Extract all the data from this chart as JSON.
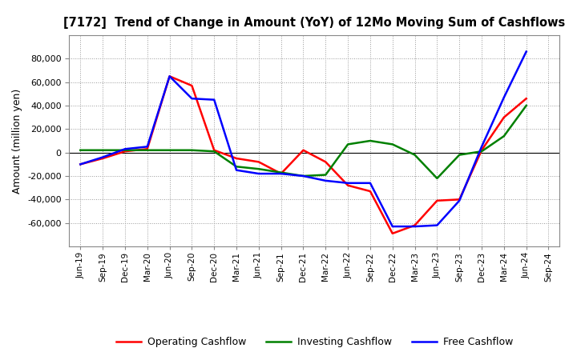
{
  "title": "[7172]  Trend of Change in Amount (YoY) of 12Mo Moving Sum of Cashflows",
  "ylabel": "Amount (million yen)",
  "x_labels": [
    "Jun-19",
    "Sep-19",
    "Dec-19",
    "Mar-20",
    "Jun-20",
    "Sep-20",
    "Dec-20",
    "Mar-21",
    "Jun-21",
    "Sep-21",
    "Dec-21",
    "Mar-22",
    "Jun-22",
    "Sep-22",
    "Dec-22",
    "Mar-23",
    "Jun-23",
    "Sep-23",
    "Dec-23",
    "Mar-24",
    "Jun-24",
    "Sep-24"
  ],
  "operating_cashflow": [
    -10000,
    -5000,
    1000,
    3000,
    65000,
    57000,
    2000,
    -5000,
    -8000,
    -18000,
    2000,
    -8000,
    -28000,
    -33000,
    -69000,
    -62000,
    -41000,
    -40000,
    2000,
    30000,
    46000,
    null
  ],
  "investing_cashflow": [
    2000,
    2000,
    2000,
    2000,
    2000,
    2000,
    1000,
    -12000,
    -14000,
    -17000,
    -20000,
    -19000,
    7000,
    10000,
    7000,
    -2000,
    -22000,
    -2000,
    1000,
    14000,
    40000,
    null
  ],
  "free_cashflow": [
    -10000,
    -4000,
    3000,
    5000,
    65000,
    46000,
    45000,
    -15000,
    -18000,
    -18000,
    -20000,
    -24000,
    -26000,
    -26000,
    -63000,
    -63000,
    -62000,
    -41000,
    5000,
    47000,
    86000,
    null
  ],
  "ylim": [
    -80000,
    100000
  ],
  "yticks": [
    -60000,
    -40000,
    -20000,
    0,
    20000,
    40000,
    60000,
    80000
  ],
  "operating_color": "#ff0000",
  "investing_color": "#008000",
  "free_color": "#0000ff",
  "bg_color": "#ffffff",
  "plot_bg_color": "#ffffff",
  "grid_color": "#999999",
  "linewidth": 1.8
}
